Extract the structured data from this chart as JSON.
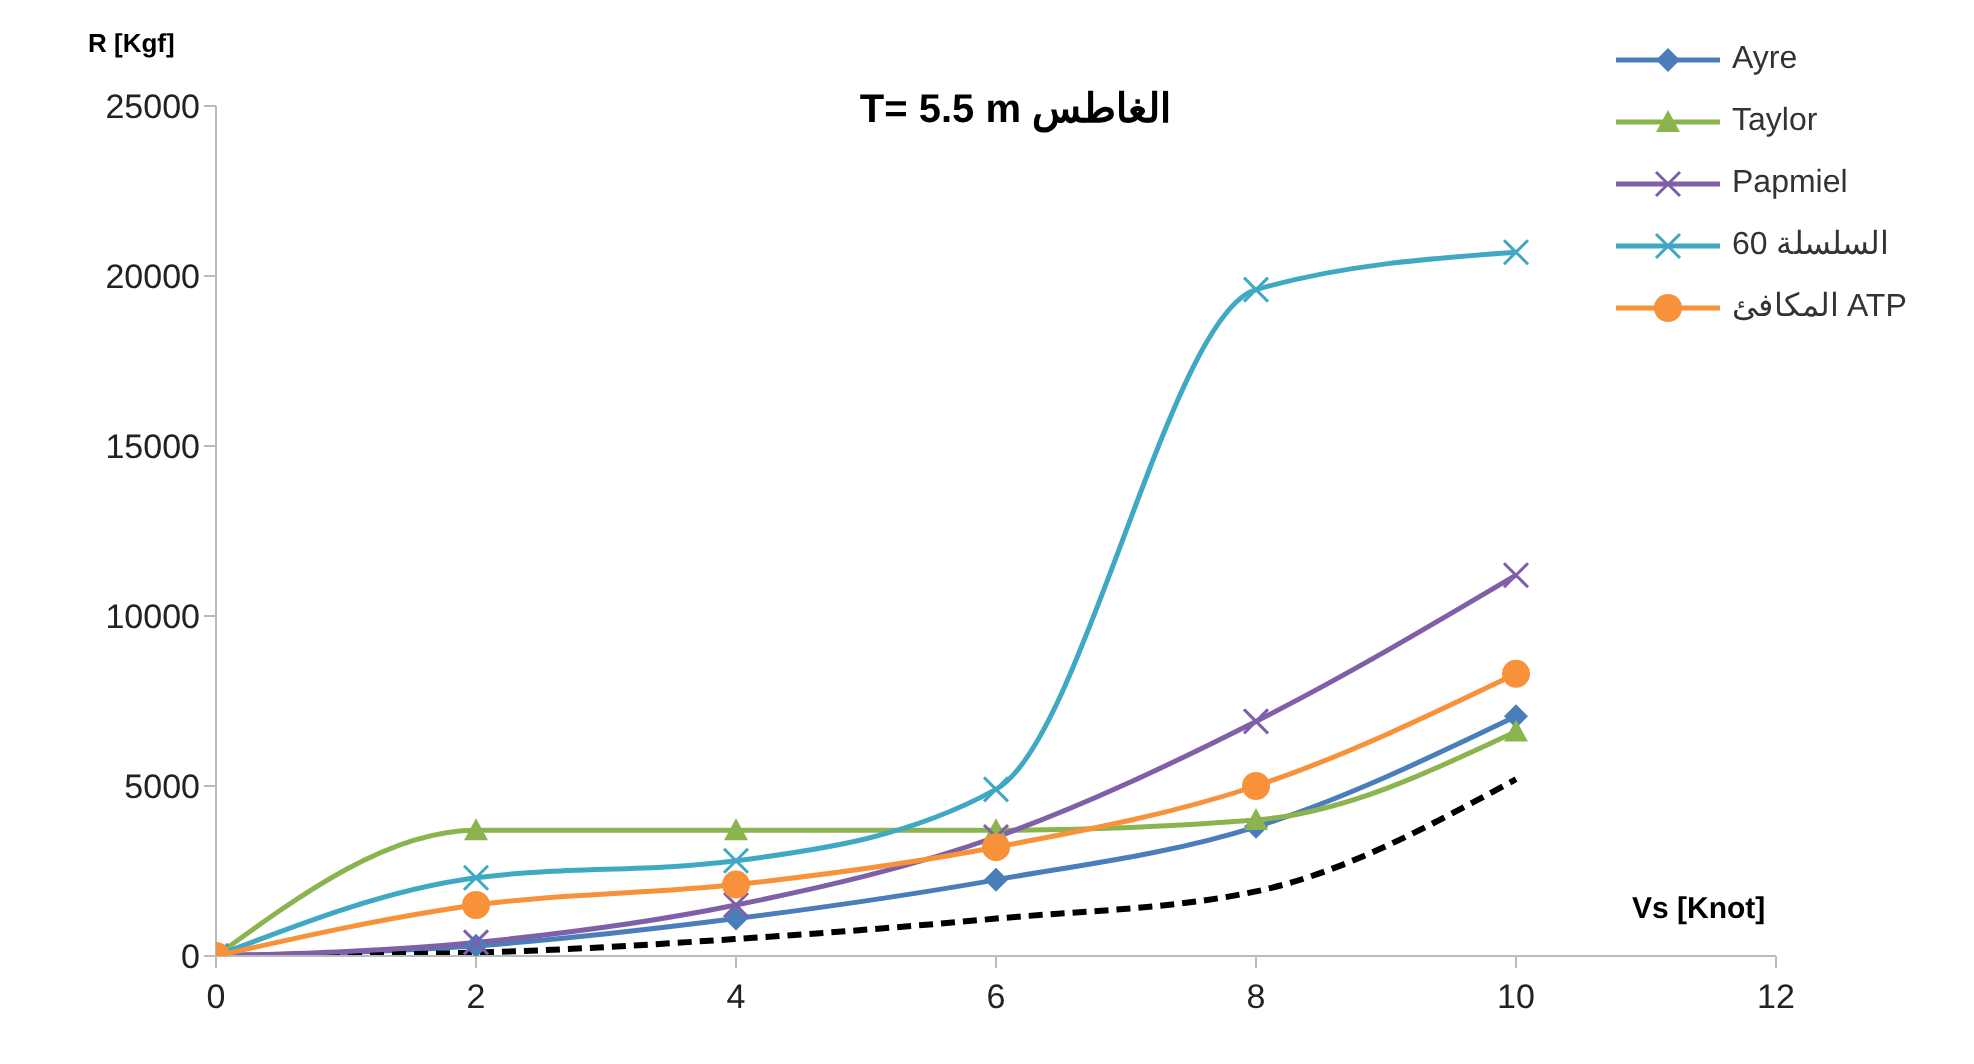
{
  "chart_data": {
    "type": "line",
    "title": "T= 5.5 m الغاطس",
    "xlabel": "Vs [Knot]",
    "ylabel": "R [Kgf]",
    "x": [
      0,
      2,
      4,
      6,
      8,
      10
    ],
    "series": [
      {
        "name": "Ayre",
        "color": "#4a7ebb",
        "marker": "diamond",
        "values": [
          0,
          300,
          1100,
          2240,
          3800,
          7050
        ]
      },
      {
        "color": "#000000",
        "line_style": "dashed",
        "marker": "none",
        "values": [
          0,
          100,
          500,
          1100,
          1900,
          5200
        ]
      },
      {
        "name": "Taylor",
        "color": "#8cb44e",
        "marker": "triangle",
        "values": [
          0,
          3700,
          3700,
          3700,
          4000,
          6600
        ]
      },
      {
        "name": "Papmiel",
        "color": "#7f5fa8",
        "marker": "cross",
        "values": [
          0,
          400,
          1500,
          3500,
          6900,
          11200
        ]
      },
      {
        "name": "السلسلة 60",
        "color": "#3fa9c4",
        "marker": "cross",
        "values": [
          0,
          2300,
          2800,
          4900,
          19600,
          20700
        ]
      },
      {
        "name": "المكافئ ATP",
        "color": "#f7923a",
        "marker": "circle",
        "values": [
          0,
          1500,
          2100,
          3200,
          5000,
          8300
        ]
      }
    ],
    "xlim": [
      0,
      12
    ],
    "xticks": [
      0,
      2,
      4,
      6,
      8,
      10,
      12
    ],
    "ylim": [
      0,
      25000
    ],
    "yticks": [
      0,
      5000,
      10000,
      15000,
      20000,
      25000
    ],
    "grid": false,
    "legend": "top right"
  }
}
